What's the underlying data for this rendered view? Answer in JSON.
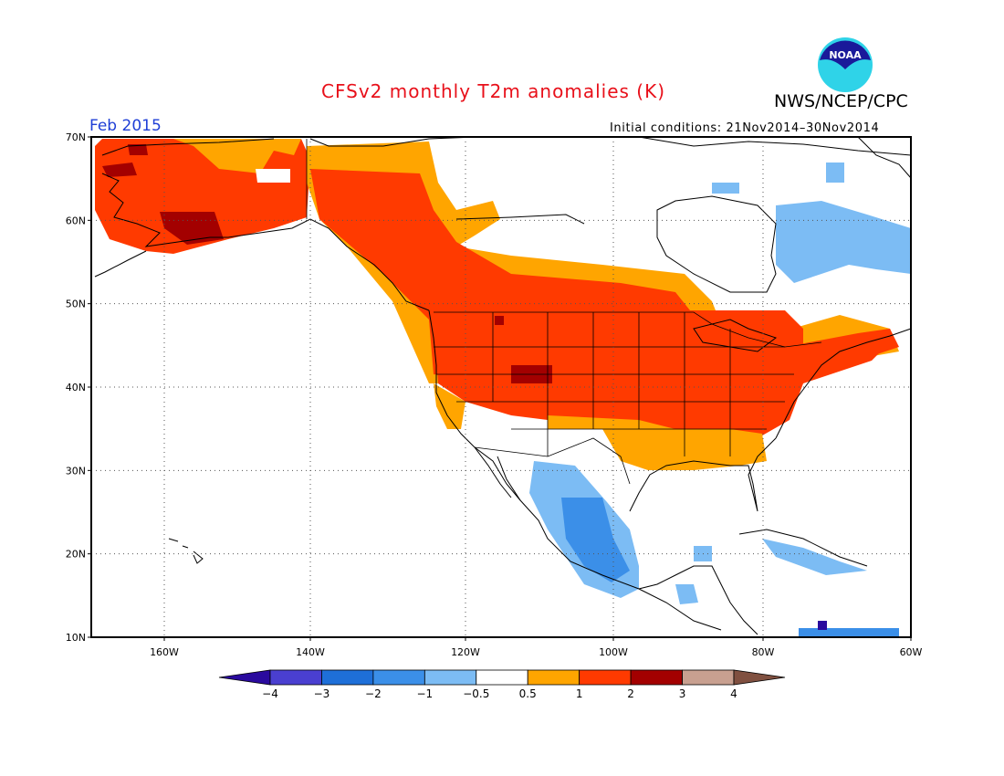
{
  "header": {
    "title": "CFSv2 monthly T2m anomalies (K)",
    "agency": "NWS/NCEP/CPC",
    "logo_text": "NOAA",
    "month": "Feb 2015",
    "initial_conditions": "Initial conditions: 21Nov2014–30Nov2014"
  },
  "axes": {
    "lat_labels": [
      "70N",
      "60N",
      "50N",
      "40N",
      "30N",
      "20N",
      "10N"
    ],
    "lon_labels": [
      "160W",
      "140W",
      "120W",
      "100W",
      "80W",
      "60W"
    ]
  },
  "legend": {
    "tick_labels": [
      "−4",
      "−3",
      "−2",
      "−1",
      "−0.5",
      "0.5",
      "1",
      "2",
      "3",
      "4"
    ],
    "colors": [
      "#2a0a9e",
      "#4a3fd0",
      "#1e6fd8",
      "#3b8fe8",
      "#7cbcf4",
      "#ffffff",
      "#ffa500",
      "#ff3a00",
      "#a30000",
      "#c8a090",
      "#805040"
    ]
  },
  "anomaly_regions": [
    {
      "name": "Alaska",
      "class": "1 to 2",
      "color": "#ff3a00"
    },
    {
      "name": "Southwest Alaska",
      "class": "2 to 3",
      "color": "#a30000"
    },
    {
      "name": "Western Canada",
      "class": "1 to 2",
      "color": "#ff3a00"
    },
    {
      "name": "Continental US",
      "class": "1 to 2",
      "color": "#ff3a00"
    },
    {
      "name": "Southern US",
      "class": "0.5 to 1",
      "color": "#ffa500"
    },
    {
      "name": "Mexico",
      "class": "-1 to -0.5",
      "color": "#7cbcf4"
    },
    {
      "name": "Northern Quebec / Labrador",
      "class": "-1 to -0.5",
      "color": "#7cbcf4"
    }
  ]
}
